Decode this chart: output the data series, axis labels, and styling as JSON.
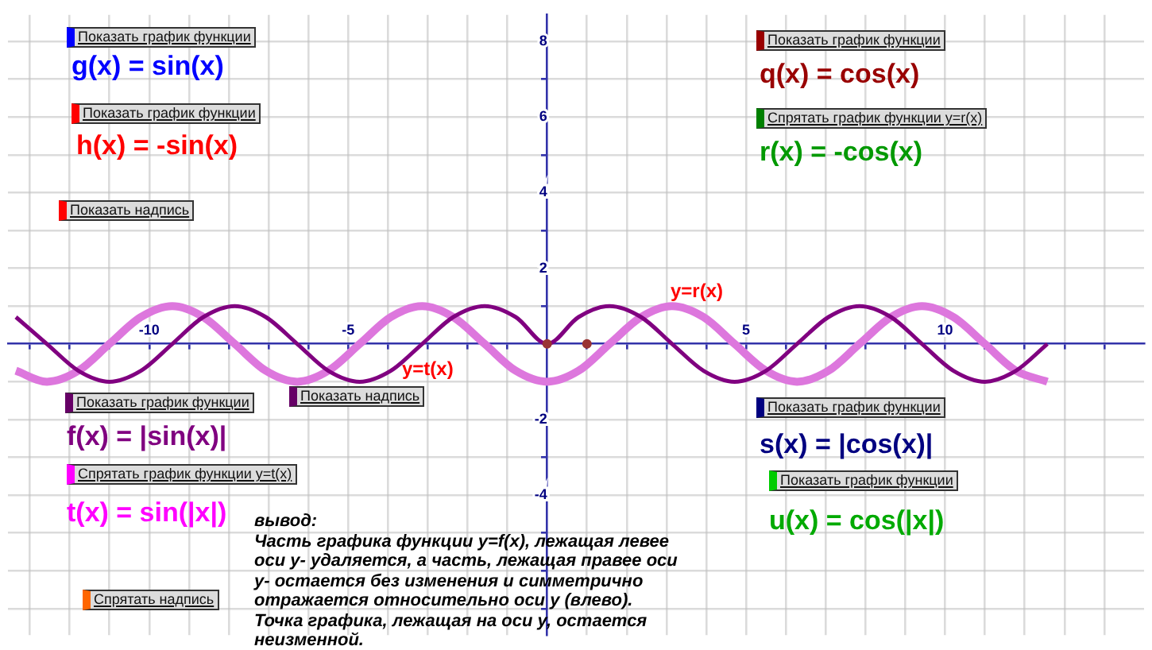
{
  "chart_data": {
    "type": "line",
    "x": [
      -13.35,
      -12.57,
      -11.78,
      -11.0,
      -10.21,
      -9.42,
      -8.64,
      -7.85,
      -7.07,
      -6.28,
      -5.5,
      -4.71,
      -3.93,
      -3.14,
      -2.36,
      -1.57,
      -0.79,
      0,
      0.79,
      1.57,
      2.36,
      3.14,
      3.93,
      4.71,
      5.5,
      6.28,
      7.07,
      7.85,
      8.64,
      9.42,
      10.21,
      11.0,
      11.78,
      12.57
    ],
    "series": [
      {
        "color": "#dd77dd",
        "values": [
          -0.71,
          -1,
          -0.71,
          0,
          0.71,
          1,
          0.71,
          0,
          -0.71,
          -1,
          -0.71,
          0,
          0.71,
          1,
          0.71,
          0,
          -0.71,
          -1,
          -0.71,
          0,
          0.71,
          1,
          0.71,
          0,
          -0.71,
          -1,
          -0.71,
          0,
          0.71,
          1,
          0.71,
          0,
          -0.71,
          -1
        ]
      },
      {
        "color": "#800080",
        "values": [
          0.71,
          0,
          -0.71,
          -1,
          -0.71,
          0,
          0.71,
          1,
          0.71,
          0,
          -0.71,
          -1,
          -0.71,
          0,
          0.71,
          1,
          0.71,
          0,
          0.71,
          1,
          0.71,
          0,
          -0.71,
          -1,
          -0.71,
          0,
          0.71,
          1,
          0.71,
          0,
          -0.71,
          -1,
          -0.71,
          0
        ]
      },
      {
        "type": "scatter",
        "color": "#993333",
        "x": [
          0,
          1
        ],
        "values": [
          0,
          0
        ]
      }
    ],
    "xlim": [
      -13.55,
      15
    ],
    "ylim": [
      -7.7,
      8.7
    ],
    "xticks": [
      {
        "value": -13,
        "label": null
      },
      {
        "value": -12,
        "label": null
      },
      {
        "value": -11,
        "label": null
      },
      -10,
      {
        "value": -9,
        "label": null
      },
      {
        "value": -8,
        "label": null
      },
      {
        "value": -7,
        "label": null
      },
      {
        "value": -6,
        "label": null
      },
      -5,
      {
        "value": -4,
        "label": null
      },
      {
        "value": -3,
        "label": null
      },
      {
        "value": -2,
        "label": null
      },
      {
        "value": -1,
        "label": null
      },
      {
        "value": 1,
        "label": null
      },
      {
        "value": 2,
        "label": null
      },
      {
        "value": 3,
        "label": null
      },
      {
        "value": 4,
        "label": null
      },
      5,
      {
        "value": 6,
        "label": null
      },
      {
        "value": 7,
        "label": null
      },
      {
        "value": 8,
        "label": null
      },
      {
        "value": 9,
        "label": null
      },
      10,
      {
        "value": 11,
        "label": null
      },
      {
        "value": 12,
        "label": null
      },
      {
        "value": 13,
        "label": null
      },
      {
        "value": 14,
        "label": null
      }
    ],
    "yticks": [
      {
        "value": -7,
        "label": null
      },
      {
        "value": -6,
        "label": null
      },
      {
        "value": -5,
        "label": null
      },
      -4,
      {
        "value": -3,
        "label": null
      },
      -2,
      {
        "value": -1,
        "label": null
      },
      {
        "value": 1,
        "label": null
      },
      2,
      {
        "value": 3,
        "label": null
      },
      4,
      {
        "value": 5,
        "label": null
      },
      6,
      {
        "value": 7,
        "label": null
      },
      8
    ],
    "grid": true,
    "legend": false,
    "annotations": [
      "Показать график функции",
      "g(x) = sin(x)",
      "Показать график функции",
      "h(x) = -sin(x)",
      "Показать надпись",
      "Показать график функции",
      "q(x) = cos(x)",
      "Спрятать график функции y=r(x)",
      "r(x) = -cos(x)",
      "Показать график функции",
      "f(x) = |sin(x)|",
      "Показать надпись",
      "Спрятать график функции y=t(x)",
      "t(x) = sin(|x|)",
      "Показать график функции",
      "s(x) = |cos(x)|",
      "Показать график функции",
      "u(x) = cos(|x|)",
      "Спрятать надпись",
      "вывод:\nЧасть графика функции y=f(x), лежащая левее\nоси y- удаляется, а часть, лежащая правее оси\ny- остается без изменения и симметрично\nотражается относительно оси y (влево).\nТочка графика, лежащая на оси y, остается\nнеизменной.",
      "y=r(x)",
      "y=t(x)"
    ]
  }
}
